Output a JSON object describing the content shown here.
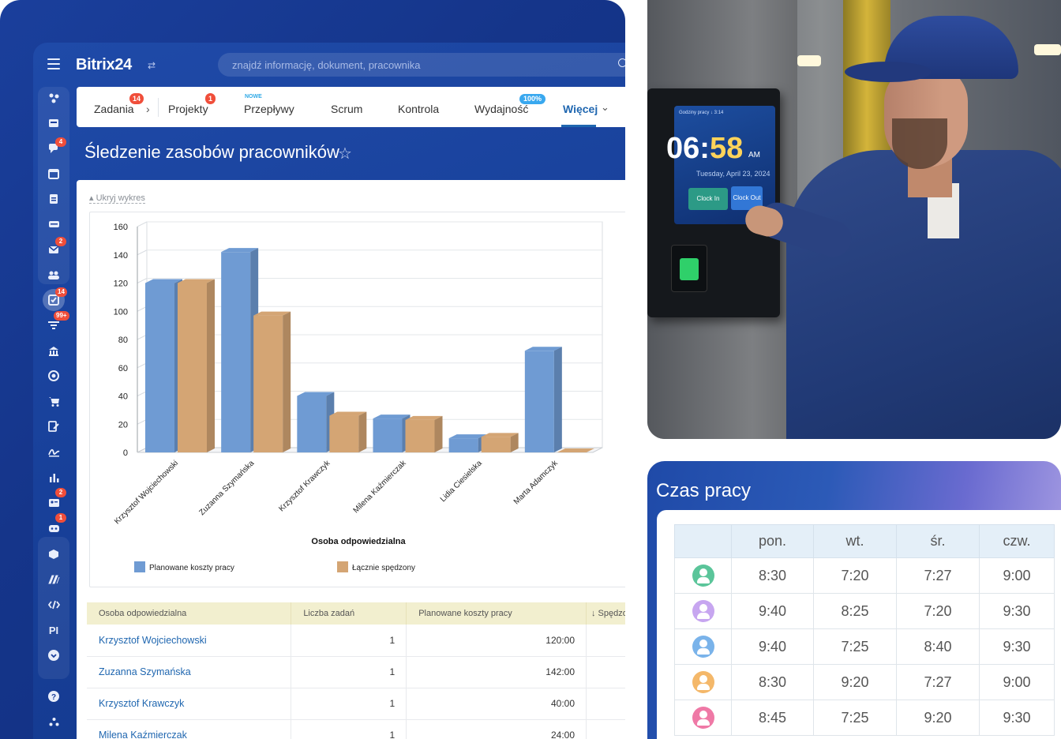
{
  "app": {
    "logo": "Bitrix24",
    "search_placeholder": "znajdź informację, dokument, pracownika",
    "page_title": "Śledzenie zasobów pracowników"
  },
  "rail_badges": [
    "4",
    "2",
    "14",
    "99+",
    "2",
    "1"
  ],
  "rail_text_item": "PI",
  "tabs": [
    {
      "label": "Zadania",
      "badge": "14"
    },
    {
      "label": "Projekty",
      "badge": "1"
    },
    {
      "label": "Przepływy",
      "flag": "NOWE"
    },
    {
      "label": "Scrum"
    },
    {
      "label": "Kontrola"
    },
    {
      "label": "Wydajność",
      "badge": "100%"
    },
    {
      "label": "Więcej"
    }
  ],
  "hide_chart_label": "Ukryj wykres",
  "chart_data": {
    "type": "bar",
    "categories": [
      "Krzysztof Wojciechowski",
      "Zuzanna Szymańska",
      "Krzysztof Krawczyk",
      "Milena Kaźmierczak",
      "Lidia Ciesielska",
      "Marta Adamczyk"
    ],
    "series": [
      {
        "name": "Planowane koszty pracy",
        "values": [
          120,
          142,
          40,
          24,
          10,
          72
        ],
        "color": "#6f9bd3"
      },
      {
        "name": "Łącznie spędzony",
        "values": [
          120,
          97,
          26,
          23,
          11,
          0
        ],
        "color": "#d4a574"
      }
    ],
    "xlabel": "Osoba odpowiedzialna",
    "ylabel": "",
    "ylim": [
      0,
      160
    ],
    "yticks": [
      0,
      20,
      40,
      60,
      80,
      100,
      120,
      140,
      160
    ],
    "grid": true,
    "legend": "bottom"
  },
  "table": {
    "headers": [
      "Osoba odpowiedzialna",
      "Liczba zadań",
      "Planowane koszty pracy",
      "↓ Spędzo"
    ],
    "rows": [
      {
        "name": "Krzysztof Wojciechowski",
        "tasks": "1",
        "planned": "120:00"
      },
      {
        "name": "Zuzanna Szymańska",
        "tasks": "1",
        "planned": "142:00"
      },
      {
        "name": "Krzysztof Krawczyk",
        "tasks": "1",
        "planned": "40:00"
      },
      {
        "name": "Milena Kaźmierczak",
        "tasks": "1",
        "planned": "24:00"
      }
    ]
  },
  "kiosk": {
    "title": "Godziny pracy ↓ 3:14",
    "hours": "06",
    "minutes": "58",
    "ampm": "AM",
    "date": "Tuesday, April 23, 2024",
    "clock_in": "Clock In",
    "clock_out": "Clock Out"
  },
  "hours": {
    "title": "Czas pracy",
    "days": [
      "pon.",
      "wt.",
      "śr.",
      "czw."
    ],
    "rows": [
      {
        "avatar_color": "#5bc59a",
        "values": [
          "8:30",
          "7:20",
          "7:27",
          "9:00"
        ]
      },
      {
        "avatar_color": "#c7a6f0",
        "values": [
          "9:40",
          "8:25",
          "7:20",
          "9:30"
        ]
      },
      {
        "avatar_color": "#7ab3ea",
        "values": [
          "9:40",
          "7:25",
          "8:40",
          "9:30"
        ]
      },
      {
        "avatar_color": "#f4b86a",
        "values": [
          "8:30",
          "9:20",
          "7:27",
          "9:00"
        ]
      },
      {
        "avatar_color": "#ef79a6",
        "values": [
          "8:45",
          "7:25",
          "9:20",
          "9:30"
        ]
      }
    ]
  }
}
